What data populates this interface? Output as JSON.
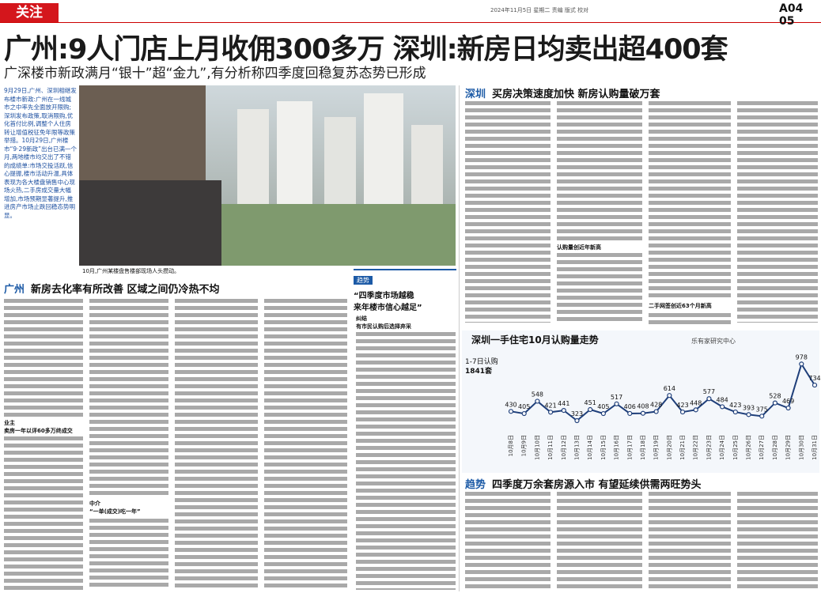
{
  "header": {
    "section": "关注",
    "date_line": "2024年11月5日 星期二 责编 版式 校对",
    "page": "A04 05"
  },
  "headline": "广州:9人门店上月收佣300多万 深圳:新房日均卖出超400套",
  "subheadline": "广深楼市新政满月“银十”超“金九”,有分析称四季度回稳复苏态势已形成",
  "lead": "9月29日,广州、深圳相继发布楼市新政:广州在一线城市之中率先全面放开限购;深圳发布政策,取消限购,优化首付比例,调整个人住房转让增值税征免年限等政策举措。10月29日,广州楼市“9·29新政”出台已满一个月,两地楼市均交出了不错的成绩单:市场交投活跃,信心提振,楼市活动升温,具体表现为各大楼盘销售中心现场火热,二手房成交量大幅增加,市场预期显著提升,推进房产市场止跌回稳态势明显。",
  "photo_caption": "10月,广州某楼盘售楼部现场人头攒动。",
  "sections": [
    {
      "tag": "广州",
      "title": "新房去化率有所改善 区域之间仍冷热不均"
    },
    {
      "tag": "深圳",
      "title": "买房决策速度加快 新房认购量破万套"
    },
    {
      "tag": "趋势",
      "title": "四季度万余套房源入市 有望延续供需两旺势头"
    }
  ],
  "sidebar": {
    "tag": "趋势",
    "title_lines": [
      "“四季度市场越稳",
      "来年楼市信心越足”"
    ]
  },
  "subheads": [
    "业主",
    "卖房一年以评60多万终成交",
    "中介",
    "“一单(成交)吃一年”",
    "纠结",
    "有市民认购后选择弃采",
    "认购量创近年新高",
    "二手网签创近63个月新高"
  ],
  "chart_data": {
    "type": "line",
    "title": "深圳一手住宅10月认购量走势",
    "source": "乐有家研究中心",
    "annotation_lines": [
      "1-7日认购",
      "1841套"
    ],
    "categories": [
      "10月8日",
      "10月9日",
      "10月10日",
      "10月11日",
      "10月12日",
      "10月13日",
      "10月14日",
      "10月15日",
      "10月16日",
      "10月17日",
      "10月18日",
      "10月19日",
      "10月20日",
      "10月21日",
      "10月22日",
      "10月23日",
      "10月24日",
      "10月25日",
      "10月26日",
      "10月27日",
      "10月28日",
      "10月29日",
      "10月30日",
      "10月31日"
    ],
    "values": [
      430,
      405,
      548,
      421,
      441,
      323,
      451,
      405,
      517,
      406,
      408,
      428,
      614,
      423,
      448,
      577,
      484,
      423,
      393,
      375,
      528,
      469,
      978,
      734
    ],
    "color": "#1f3f7a",
    "ylim": [
      250,
      1000
    ]
  }
}
